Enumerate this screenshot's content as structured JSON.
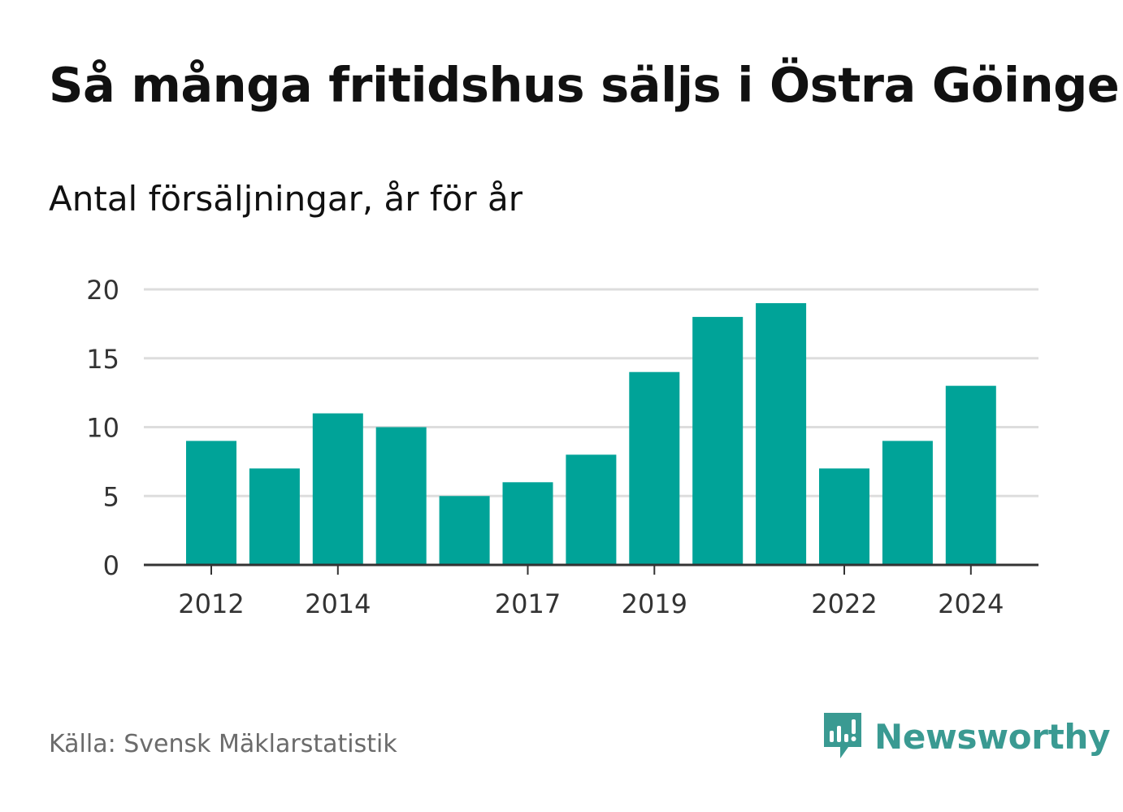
{
  "title": "Så många fritidshus säljs i Östra Göinge",
  "subtitle": "Antal försäljningar, år för år",
  "source": "Källa: Svensk Mäklarstatistik",
  "brand": {
    "name": "Newsworthy",
    "icon": "newsworthy-logo-icon",
    "color": "#3a9a92"
  },
  "colors": {
    "bar": "#00a398",
    "grid": "#dddddd",
    "axis": "#333333"
  },
  "chart_data": {
    "type": "bar",
    "categories": [
      2012,
      2013,
      2014,
      2015,
      2016,
      2017,
      2018,
      2019,
      2020,
      2021,
      2022,
      2023,
      2024
    ],
    "values": [
      9,
      7,
      11,
      10,
      5,
      6,
      8,
      14,
      18,
      19,
      7,
      9,
      13
    ],
    "x_tick_labels": [
      "2012",
      "2014",
      "2017",
      "2019",
      "2022",
      "2024"
    ],
    "y_ticks": [
      0,
      5,
      10,
      15,
      20
    ],
    "ylim": [
      0,
      20
    ],
    "grid": true
  }
}
